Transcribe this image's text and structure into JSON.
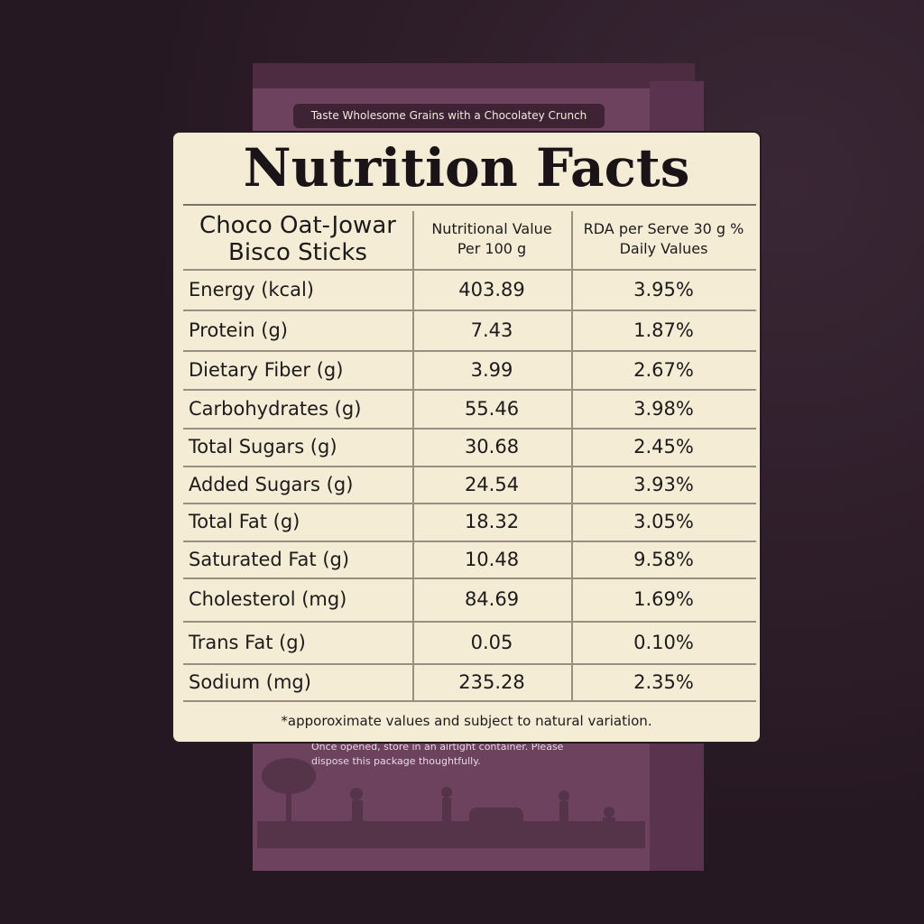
{
  "box": {
    "tagline": "Taste Wholesome Grains with a Chocolatey Crunch",
    "note": "Once opened, store in an airtight container. Please dispose this package thoughtfully."
  },
  "panel": {
    "title": "Nutrition Facts",
    "table": {
      "header": [
        "Choco Oat-Jowar Bisco Sticks",
        "Nutritional Value Per 100 g",
        "RDA per Serve 30 g % Daily Values"
      ],
      "rows": [
        [
          "Energy (kcal)",
          "403.89",
          "3.95%"
        ],
        [
          "Protein (g)",
          "7.43",
          "1.87%"
        ],
        [
          "Dietary Fiber (g)",
          "3.99",
          "2.67%"
        ],
        [
          "Carbohydrates (g)",
          "55.46",
          "3.98%"
        ],
        [
          "Total Sugars (g)",
          "30.68",
          "2.45%"
        ],
        [
          "Added Sugars (g)",
          "24.54",
          "3.93%"
        ],
        [
          "Total Fat (g)",
          "18.32",
          "3.05%"
        ],
        [
          "Saturated Fat (g)",
          "10.48",
          "9.58%"
        ],
        [
          "Cholesterol (mg)",
          "84.69",
          "1.69%"
        ],
        [
          "Trans Fat (g)",
          "0.05",
          "0.10%"
        ],
        [
          "Sodium (mg)",
          "235.28",
          "2.35%"
        ]
      ]
    },
    "footnote": "*apporoximate values and subject to natural variation."
  }
}
